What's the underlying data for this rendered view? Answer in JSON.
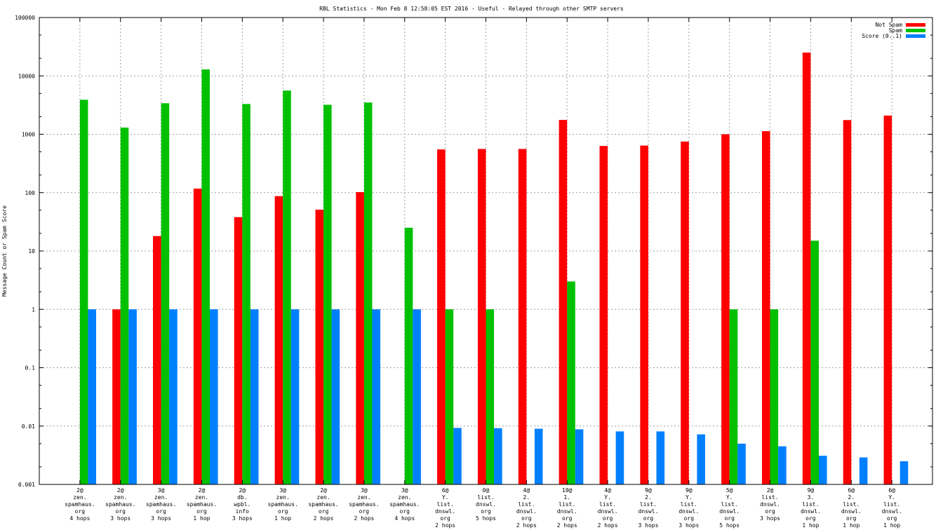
{
  "chart_data": {
    "type": "bar",
    "title": "RBL Statistics - Mon Feb  8 12:58:05 EST 2016 - Useful - Relayed through other SMTP servers",
    "xlabel": "",
    "ylabel": "Message Count or Spam Score",
    "yscale": "log",
    "ylim": [
      0.001,
      100000
    ],
    "yticks": [
      "0.001",
      "0.01",
      "0.1",
      "1",
      "10",
      "100",
      "1000",
      "10000",
      "100000"
    ],
    "grid": true,
    "legend_position": "top-right",
    "categories": [
      [
        "2@",
        "zen.",
        "spamhaus.",
        "org",
        "4 hops"
      ],
      [
        "2@",
        "zen.",
        "spamhaus.",
        "org",
        "3 hops"
      ],
      [
        "3@",
        "zen.",
        "spamhaus.",
        "org",
        "3 hops"
      ],
      [
        "2@",
        "zen.",
        "spamhaus.",
        "org",
        "1 hop"
      ],
      [
        "2@",
        "db.",
        "wpbl.",
        "info",
        "3 hops"
      ],
      [
        "3@",
        "zen.",
        "spamhaus.",
        "org",
        "1 hop"
      ],
      [
        "2@",
        "zen.",
        "spamhaus.",
        "org",
        "2 hops"
      ],
      [
        "3@",
        "zen.",
        "spamhaus.",
        "org",
        "2 hops"
      ],
      [
        "3@",
        "zen.",
        "spamhaus.",
        "org",
        "4 hops"
      ],
      [
        "6@",
        "Y.",
        "list.",
        "dnswl.",
        "org",
        "2 hops"
      ],
      [
        "0@",
        "list.",
        "dnswl.",
        "org",
        "5 hops"
      ],
      [
        "4@",
        "2.",
        "list.",
        "dnswl.",
        "org",
        "2 hops"
      ],
      [
        "10@",
        "1.",
        "list.",
        "dnswl.",
        "org",
        "2 hops"
      ],
      [
        "4@",
        "Y.",
        "list.",
        "dnswl.",
        "org",
        "2 hops"
      ],
      [
        "9@",
        "2.",
        "list.",
        "dnswl.",
        "org",
        "3 hops"
      ],
      [
        "9@",
        "Y.",
        "list.",
        "dnswl.",
        "org",
        "3 hops"
      ],
      [
        "5@",
        "Y.",
        "list.",
        "dnswl.",
        "org",
        "5 hops"
      ],
      [
        "2@",
        "list.",
        "dnswl.",
        "org",
        "3 hops"
      ],
      [
        "9@",
        "3.",
        "list.",
        "dnswl.",
        "org",
        "1 hop"
      ],
      [
        "6@",
        "2.",
        "list.",
        "dnswl.",
        "org",
        "1 hop"
      ],
      [
        "6@",
        "Y.",
        "list.",
        "dnswl.",
        "org",
        "1 hop"
      ]
    ],
    "series": [
      {
        "name": "Not Spam",
        "color": "#ff0000",
        "values": [
          null,
          1,
          18,
          117,
          38,
          87,
          51,
          102,
          null,
          550,
          560,
          560,
          1760,
          630,
          640,
          750,
          1000,
          1130,
          25100,
          1750,
          2090
        ]
      },
      {
        "name": "Spam",
        "color": "#00c000",
        "values": [
          3900,
          1300,
          3400,
          12900,
          3300,
          5600,
          3200,
          3500,
          25,
          1,
          1,
          null,
          3,
          null,
          null,
          null,
          1,
          1,
          15,
          null,
          null
        ]
      },
      {
        "name": "Score (0..1)",
        "color": "#0080ff",
        "values": [
          1,
          1,
          1,
          1,
          1,
          1,
          1,
          1,
          1,
          0.0093,
          0.0092,
          0.009,
          0.0088,
          0.0081,
          0.0081,
          0.0072,
          0.005,
          0.0045,
          0.0031,
          0.0029,
          0.0025
        ]
      }
    ]
  }
}
